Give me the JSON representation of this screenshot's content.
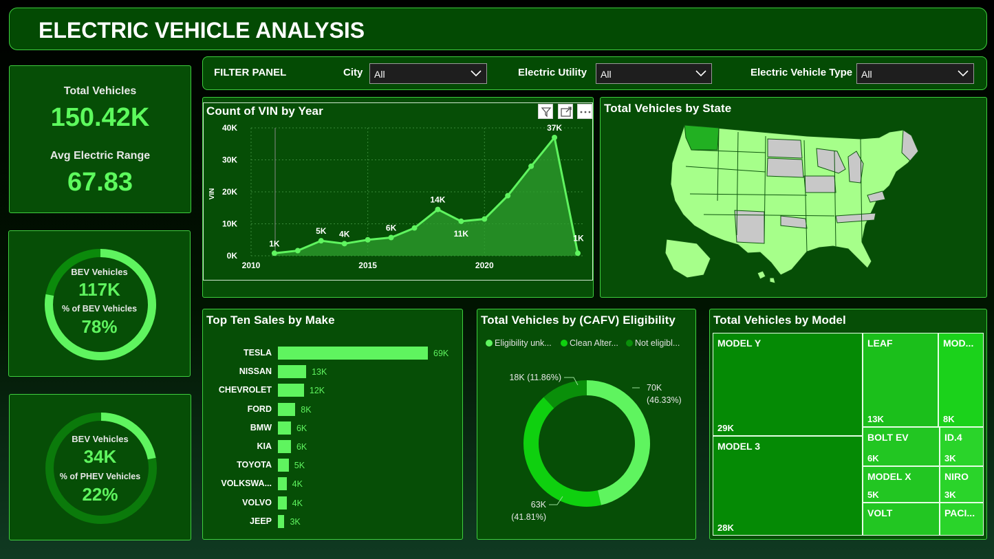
{
  "header": {
    "title": "ELECTRIC VEHICLE ANALYSIS"
  },
  "filter": {
    "panel_label": "FILTER PANEL",
    "city_label": "City",
    "city_value": "All",
    "utility_label": "Electric Utility",
    "utility_value": "All",
    "type_label": "Electric Vehicle Type",
    "type_value": "All"
  },
  "kpi": {
    "total_label": "Total Vehicles",
    "total_value": "150.42K",
    "range_label": "Avg Electric Range",
    "range_value": "67.83"
  },
  "bev_ring": {
    "label": "BEV Vehicles",
    "value": "117K",
    "pct_label": "% of BEV Vehicles",
    "pct_value": "78%",
    "fraction": 0.78
  },
  "phev_ring": {
    "label": "BEV Vehicles",
    "value": "34K",
    "pct_label": "% of PHEV Vehicles",
    "pct_value": "22%",
    "fraction": 0.22
  },
  "colors": {
    "accent": "#5ff45f",
    "panel": "#064e06",
    "border": "#3fcf3f"
  },
  "line_chart": {
    "title": "Count of VIN by Year",
    "ylabel": "VIN",
    "icons": [
      "filter-icon",
      "focus-icon",
      "more-icon"
    ],
    "chart_data": {
      "type": "area",
      "x": [
        2011,
        2012,
        2013,
        2014,
        2015,
        2016,
        2017,
        2018,
        2019,
        2020,
        2021,
        2022,
        2023,
        2024
      ],
      "y": [
        800,
        1600,
        4700,
        3800,
        5000,
        5700,
        8700,
        14500,
        10800,
        11500,
        18800,
        28000,
        37000,
        800
      ],
      "data_labels": [
        {
          "x": 2011,
          "text": "1K"
        },
        {
          "x": 2013,
          "text": "5K"
        },
        {
          "x": 2014,
          "text": "4K"
        },
        {
          "x": 2016,
          "text": "6K"
        },
        {
          "x": 2018,
          "text": "14K"
        },
        {
          "x": 2019,
          "text": "11K"
        },
        {
          "x": 2023,
          "text": "37K"
        },
        {
          "x": 2024,
          "text": "1K"
        }
      ],
      "ylim": [
        0,
        40000
      ],
      "xlim": [
        2010,
        2024
      ],
      "yticks": [
        0,
        10000,
        20000,
        30000,
        40000
      ],
      "ytick_labels": [
        "0K",
        "10K",
        "20K",
        "30K",
        "40K"
      ],
      "xticks": [
        2010,
        2015,
        2020
      ],
      "xtick_labels": [
        "2010",
        "2015",
        "2020"
      ],
      "grid": true
    }
  },
  "map": {
    "title": "Total Vehicles by State"
  },
  "bar_chart": {
    "title": "Top Ten Sales by Make",
    "chart_data": {
      "type": "bar",
      "orientation": "horizontal",
      "categories": [
        "TESLA",
        "NISSAN",
        "CHEVROLET",
        "FORD",
        "BMW",
        "KIA",
        "TOYOTA",
        "VOLKSWA...",
        "VOLVO",
        "JEEP"
      ],
      "values": [
        69000,
        13000,
        12000,
        8000,
        6000,
        6000,
        5000,
        4000,
        4000,
        3000
      ],
      "value_labels": [
        "69K",
        "13K",
        "12K",
        "8K",
        "6K",
        "6K",
        "5K",
        "4K",
        "4K",
        "3K"
      ]
    }
  },
  "donut": {
    "title": "Total Vehicles by (CAFV) Eligibility",
    "legend": [
      "Eligibility unk...",
      "Clean Alter...",
      "Not eligibl..."
    ],
    "chart_data": {
      "type": "pie",
      "categories": [
        "Eligibility unknown",
        "Clean Alternative Fuel Vehicle Eligible",
        "Not eligible"
      ],
      "values": [
        70000,
        63000,
        18000
      ],
      "colors": [
        "#5ff45f",
        "#0fd00f",
        "#0a8f0a"
      ],
      "labels": [
        [
          "70K",
          "(46.33%)"
        ],
        [
          "63K",
          "(41.81%)"
        ],
        [
          "18K (11.86%)"
        ]
      ]
    }
  },
  "treemap": {
    "title": "Total Vehicles by Model",
    "chart_data": {
      "type": "treemap",
      "items": [
        {
          "name": "MODEL Y",
          "value": 29000,
          "label": "29K"
        },
        {
          "name": "MODEL 3",
          "value": 28000,
          "label": "28K"
        },
        {
          "name": "LEAF",
          "value": 13000,
          "label": "13K"
        },
        {
          "name": "MOD...",
          "value": 8000,
          "label": "8K"
        },
        {
          "name": "BOLT EV",
          "value": 6000,
          "label": "6K"
        },
        {
          "name": "ID.4",
          "value": 3000,
          "label": "3K"
        },
        {
          "name": "MODEL X",
          "value": 5000,
          "label": "5K"
        },
        {
          "name": "NIRO",
          "value": 3000,
          "label": "3K"
        },
        {
          "name": "VOLT",
          "value": 5000,
          "label": ""
        },
        {
          "name": "PACI...",
          "value": 3000,
          "label": ""
        }
      ]
    }
  }
}
